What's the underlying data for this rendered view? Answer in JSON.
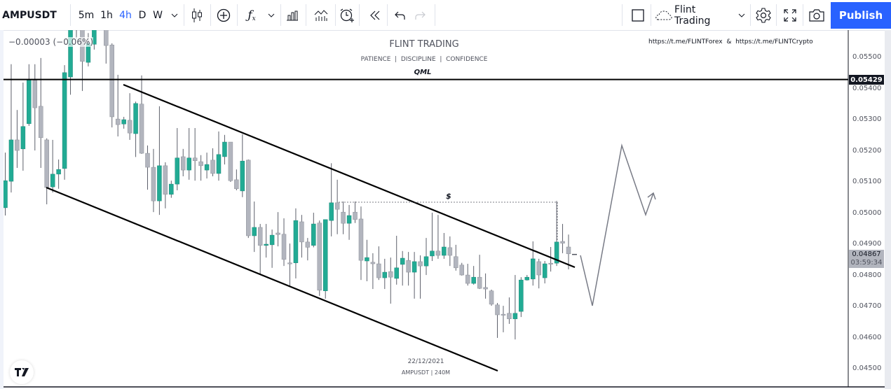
{
  "toolbar": {
    "symbol": "AMPUSDT",
    "intervals": [
      "5m",
      "1h",
      "4h",
      "D",
      "W"
    ],
    "active_interval": "4h",
    "icons": [
      "chevron-down-icon",
      "candles-icon",
      "plus-circle-icon",
      "fx-indicators-icon",
      "chevron-down-icon",
      "bar-chart-icon",
      "indicator-templates-icon",
      "alarm-add-icon",
      "replay-icon",
      "undo-icon",
      "redo-icon"
    ],
    "layout_name": "Flint Trading",
    "right_icons": [
      "square-icon",
      "cloud-icon",
      "gear-icon",
      "fullscreen-icon",
      "camera-icon"
    ],
    "publish_label": "Publish"
  },
  "legend": {
    "change": "−0.00003 (−0.06%)"
  },
  "watermark": {
    "title": "FLINT TRADING",
    "subtitle": "PATIENCE  |  DISCIPLINE  |  CONFIDENCE",
    "links": "https://t.me/FLINTForex  &  https://t.me/FLINTCrypto",
    "date": "22/12/2021",
    "footer": "AMPUSDT | 240M"
  },
  "annotations": {
    "qml_label": "QML",
    "dollar_label": "$"
  },
  "price_axis": {
    "ticks": [
      "0.05500",
      "0.05400",
      "0.05300",
      "0.05200",
      "0.05100",
      "0.05000",
      "0.04900",
      "0.04800",
      "0.04700",
      "0.04600",
      "0.04500"
    ],
    "qml_price": "0.05429",
    "last_price": "0.04867",
    "countdown": "03:59:34"
  },
  "colors": {
    "up": "#22ab94",
    "down": "#b2b5be",
    "accent": "#2962ff",
    "wick": "#5d606b"
  },
  "chart_data": {
    "type": "candlestick",
    "symbol": "AMPUSDT",
    "timeframe": "240M",
    "ylim": [
      0.0445,
      0.0565
    ],
    "ohlc_fields": [
      "open",
      "high",
      "low",
      "close"
    ],
    "candles": [
      [
        0.05017,
        0.05194,
        0.04992,
        0.05104
      ],
      [
        0.05102,
        0.05478,
        0.05066,
        0.05235
      ],
      [
        0.05235,
        0.05331,
        0.05145,
        0.05201
      ],
      [
        0.05206,
        0.05419,
        0.05136,
        0.05278
      ],
      [
        0.05287,
        0.05478,
        0.0528,
        0.05428
      ],
      [
        0.05426,
        0.05478,
        0.05201,
        0.05338
      ],
      [
        0.05343,
        0.05498,
        0.05145,
        0.05242
      ],
      [
        0.05235,
        0.0524,
        0.05028,
        0.05082
      ],
      [
        0.05084,
        0.05235,
        0.05066,
        0.05125
      ],
      [
        0.05125,
        0.05172,
        0.05078,
        0.0514
      ],
      [
        0.05143,
        0.05475,
        0.05107,
        0.05451
      ],
      [
        0.05437,
        0.0562,
        0.0538,
        0.0559
      ],
      [
        0.0559,
        0.057,
        0.0556,
        0.0566
      ],
      [
        0.0562,
        0.0566,
        0.05392,
        0.05487
      ],
      [
        0.05484,
        0.05578,
        0.05471,
        0.05545
      ],
      [
        0.05542,
        0.0565,
        0.05525,
        0.05594
      ],
      [
        0.0568,
        0.0572,
        0.05598,
        0.0562
      ],
      [
        0.0562,
        0.0566,
        0.0548,
        0.05538
      ],
      [
        0.0554,
        0.05545,
        0.05275,
        0.05309
      ],
      [
        0.05302,
        0.05444,
        0.05246,
        0.05284
      ],
      [
        0.05286,
        0.05309,
        0.05271,
        0.053
      ],
      [
        0.05298,
        0.05385,
        0.05235,
        0.05257
      ],
      [
        0.05255,
        0.05358,
        0.0518,
        0.05352
      ],
      [
        0.0535,
        0.05442,
        0.0519,
        0.05192
      ],
      [
        0.05192,
        0.05217,
        0.05075,
        0.05147
      ],
      [
        0.05147,
        0.05206,
        0.05003,
        0.05039
      ],
      [
        0.05039,
        0.05343,
        0.04994,
        0.05152
      ],
      [
        0.05152,
        0.05163,
        0.05015,
        0.0506
      ],
      [
        0.0506,
        0.05104,
        0.05049,
        0.05093
      ],
      [
        0.05093,
        0.05273,
        0.05073,
        0.05177
      ],
      [
        0.05181,
        0.05206,
        0.05118,
        0.05138
      ],
      [
        0.05138,
        0.05273,
        0.05107,
        0.05177
      ],
      [
        0.05177,
        0.05273,
        0.05104,
        0.05168
      ],
      [
        0.05165,
        0.05186,
        0.05104,
        0.05152
      ],
      [
        0.05138,
        0.05194,
        0.05111,
        0.05156
      ],
      [
        0.0517,
        0.05208,
        0.05118,
        0.05127
      ],
      [
        0.05127,
        0.05262,
        0.05104,
        0.05188
      ],
      [
        0.05181,
        0.05251,
        0.05156,
        0.05228
      ],
      [
        0.05228,
        0.05228,
        0.051,
        0.05104
      ],
      [
        0.05107,
        0.0514,
        0.05073,
        0.05078
      ],
      [
        0.05071,
        0.05253,
        0.05051,
        0.05167
      ],
      [
        0.0517,
        0.05172,
        0.0492,
        0.04927
      ],
      [
        0.04927,
        0.05037,
        0.04875,
        0.04954
      ],
      [
        0.04954,
        0.04965,
        0.04803,
        0.04896
      ],
      [
        0.04896,
        0.04965,
        0.04857,
        0.049
      ],
      [
        0.04898,
        0.04947,
        0.04824,
        0.04929
      ],
      [
        0.04936,
        0.05003,
        0.04893,
        0.04931
      ],
      [
        0.04932,
        0.04983,
        0.0483,
        0.04851
      ],
      [
        0.0484,
        0.04902,
        0.04763,
        0.04839
      ],
      [
        0.0484,
        0.05015,
        0.0479,
        0.04976
      ],
      [
        0.04972,
        0.04994,
        0.04857,
        0.04907
      ],
      [
        0.04907,
        0.0492,
        0.04848,
        0.0489
      ],
      [
        0.04896,
        0.05001,
        0.0489,
        0.04965
      ],
      [
        0.04968,
        0.04976,
        0.04734,
        0.04752
      ],
      [
        0.0475,
        0.04979,
        0.04725,
        0.04979
      ],
      [
        0.04976,
        0.0516,
        0.04925,
        0.05033
      ],
      [
        0.05033,
        0.05107,
        0.04932,
        0.05012
      ],
      [
        0.05003,
        0.05037,
        0.04932,
        0.04967
      ],
      [
        0.04967,
        0.05026,
        0.04914,
        0.04992
      ],
      [
        0.05003,
        0.05037,
        0.04968,
        0.04979
      ],
      [
        0.04981,
        0.05021,
        0.04785,
        0.04848
      ],
      [
        0.04846,
        0.04914,
        0.04781,
        0.04857
      ],
      [
        0.04842,
        0.04871,
        0.04756,
        0.04837
      ],
      [
        0.04837,
        0.04893,
        0.04785,
        0.04792
      ],
      [
        0.04792,
        0.04853,
        0.04756,
        0.0481
      ],
      [
        0.04812,
        0.04857,
        0.04709,
        0.04794
      ],
      [
        0.0479,
        0.04927,
        0.0477,
        0.04824
      ],
      [
        0.04835,
        0.04878,
        0.04767,
        0.04855
      ],
      [
        0.04848,
        0.04875,
        0.04767,
        0.0481
      ],
      [
        0.0481,
        0.04875,
        0.04725,
        0.04844
      ],
      [
        0.04844,
        0.04864,
        0.04725,
        0.0483
      ],
      [
        0.0483,
        0.0492,
        0.04801,
        0.0486
      ],
      [
        0.04862,
        0.05001,
        0.04846,
        0.04878
      ],
      [
        0.04878,
        0.04994,
        0.04853,
        0.04864
      ],
      [
        0.04864,
        0.04936,
        0.04853,
        0.04891
      ],
      [
        0.04889,
        0.04925,
        0.0483,
        0.04864
      ],
      [
        0.0486,
        0.04898,
        0.04815,
        0.04824
      ],
      [
        0.04833,
        0.0484,
        0.04799,
        0.04801
      ],
      [
        0.04801,
        0.04837,
        0.04767,
        0.04774
      ],
      [
        0.04774,
        0.0483,
        0.0477,
        0.04794
      ],
      [
        0.04794,
        0.04866,
        0.04756,
        0.04758
      ],
      [
        0.04761,
        0.04806,
        0.04725,
        0.04756
      ],
      [
        0.0475,
        0.04754,
        0.04702,
        0.04707
      ],
      [
        0.04705,
        0.04711,
        0.04599,
        0.04673
      ],
      [
        0.04675,
        0.04702,
        0.04617,
        0.04673
      ],
      [
        0.04678,
        0.04729,
        0.04644,
        0.0466
      ],
      [
        0.0466,
        0.04801,
        0.04594,
        0.04678
      ],
      [
        0.04684,
        0.04794,
        0.04666,
        0.04785
      ],
      [
        0.04785,
        0.04801,
        0.04783,
        0.04794
      ],
      [
        0.04788,
        0.04909,
        0.04767,
        0.04853
      ],
      [
        0.04844,
        0.04853,
        0.04758,
        0.04801
      ],
      [
        0.04792,
        0.04846,
        0.04774,
        0.04837
      ],
      [
        0.04839,
        0.04891,
        0.04812,
        0.04837
      ],
      [
        0.04839,
        0.05039,
        0.0483,
        0.04907
      ],
      [
        0.04909,
        0.04965,
        0.04871,
        0.04903
      ],
      [
        0.04891,
        0.04931,
        0.04819,
        0.04869
      ]
    ],
    "qml_level": 0.05429,
    "last_price": 0.04867
  }
}
